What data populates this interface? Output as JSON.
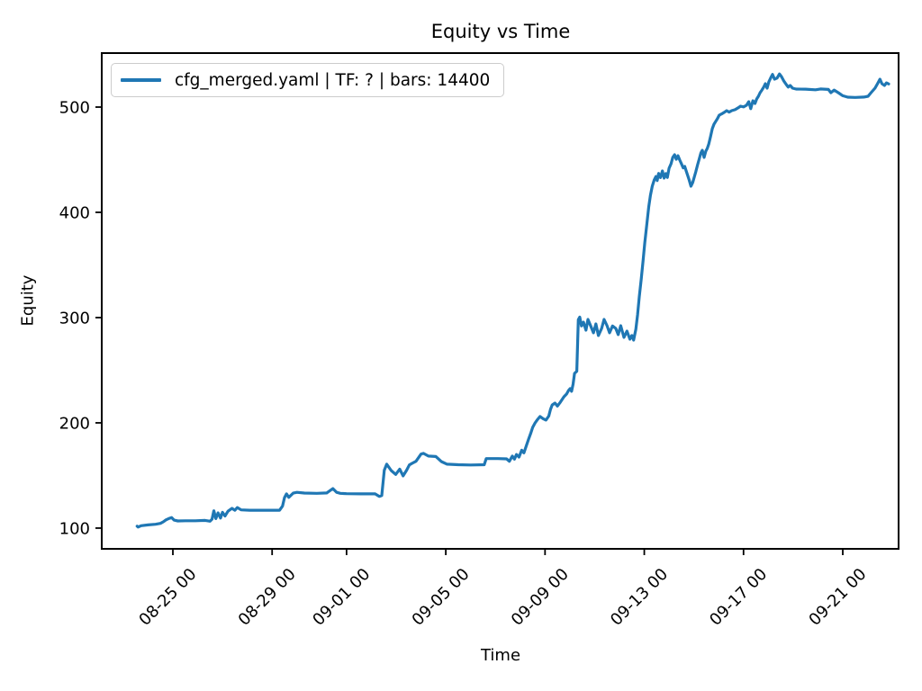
{
  "figure": {
    "background": "#ffffff",
    "text_color": "#000000",
    "spine_color": "#000000",
    "legend_border_color": "#cccccc"
  },
  "chart_data": {
    "type": "line",
    "title": "Equity vs Time",
    "xlabel": "Time",
    "ylabel": "Equity",
    "grid": false,
    "legend_position": "upper left",
    "x_units": "days (0 = 08-23 00:00), estimated from axis ticks",
    "xlim": [
      -0.867,
      31.25
    ],
    "ylim": [
      80.3,
      551.3
    ],
    "yticks": [
      100,
      200,
      300,
      400,
      500
    ],
    "xticks": [
      {
        "t": 2,
        "label": "08-25 00"
      },
      {
        "t": 6,
        "label": "08-29 00"
      },
      {
        "t": 9,
        "label": "09-01 00"
      },
      {
        "t": 13,
        "label": "09-05 00"
      },
      {
        "t": 17,
        "label": "09-09 00"
      },
      {
        "t": 21,
        "label": "09-13 00"
      },
      {
        "t": 25,
        "label": "09-17 00"
      },
      {
        "t": 29,
        "label": "09-21 00"
      }
    ],
    "series": [
      {
        "name": "cfg_merged.yaml | TF: ? | bars: 14400",
        "color": "#1f77b4",
        "line_width": 3.2,
        "points": [
          [
            0.56,
            101.8
          ],
          [
            0.6,
            101
          ],
          [
            0.72,
            102.3
          ],
          [
            1.0,
            103
          ],
          [
            1.3,
            103.6
          ],
          [
            1.5,
            104.5
          ],
          [
            1.62,
            106
          ],
          [
            1.72,
            107.8
          ],
          [
            1.83,
            109
          ],
          [
            1.95,
            110
          ],
          [
            2.05,
            107.6
          ],
          [
            2.2,
            106.8
          ],
          [
            2.5,
            107
          ],
          [
            2.9,
            107
          ],
          [
            3.3,
            107.3
          ],
          [
            3.5,
            106.5
          ],
          [
            3.58,
            108.5
          ],
          [
            3.65,
            116.5
          ],
          [
            3.73,
            109
          ],
          [
            3.82,
            114.5
          ],
          [
            3.92,
            109.5
          ],
          [
            4.0,
            115
          ],
          [
            4.1,
            111.5
          ],
          [
            4.22,
            116
          ],
          [
            4.38,
            118.8
          ],
          [
            4.5,
            117
          ],
          [
            4.6,
            119.5
          ],
          [
            4.75,
            117.3
          ],
          [
            5.1,
            117
          ],
          [
            5.7,
            117
          ],
          [
            6.3,
            117
          ],
          [
            6.42,
            121
          ],
          [
            6.5,
            129
          ],
          [
            6.58,
            132.5
          ],
          [
            6.67,
            129.2
          ],
          [
            6.85,
            133.2
          ],
          [
            7.0,
            134
          ],
          [
            7.3,
            133.3
          ],
          [
            7.8,
            133
          ],
          [
            8.2,
            133.4
          ],
          [
            8.45,
            137.6
          ],
          [
            8.6,
            134
          ],
          [
            8.75,
            133
          ],
          [
            9.0,
            132.7
          ],
          [
            9.6,
            132.5
          ],
          [
            10.15,
            132.5
          ],
          [
            10.32,
            130.1
          ],
          [
            10.42,
            131
          ],
          [
            10.52,
            155
          ],
          [
            10.62,
            160.7
          ],
          [
            10.8,
            154.7
          ],
          [
            10.98,
            151
          ],
          [
            11.14,
            156
          ],
          [
            11.28,
            149.6
          ],
          [
            11.42,
            155
          ],
          [
            11.53,
            160
          ],
          [
            11.64,
            161.5
          ],
          [
            11.8,
            163.5
          ],
          [
            12.0,
            170.3
          ],
          [
            12.1,
            171
          ],
          [
            12.3,
            168.4
          ],
          [
            12.6,
            168
          ],
          [
            12.82,
            163.2
          ],
          [
            13.05,
            160.7
          ],
          [
            13.5,
            160.2
          ],
          [
            14.0,
            160
          ],
          [
            14.55,
            160.2
          ],
          [
            14.63,
            166
          ],
          [
            15.1,
            166
          ],
          [
            15.45,
            165.8
          ],
          [
            15.56,
            163.5
          ],
          [
            15.68,
            168.4
          ],
          [
            15.77,
            165.5
          ],
          [
            15.85,
            170
          ],
          [
            15.95,
            167.5
          ],
          [
            16.06,
            174
          ],
          [
            16.15,
            171.5
          ],
          [
            16.25,
            178.6
          ],
          [
            16.34,
            184.6
          ],
          [
            16.42,
            190
          ],
          [
            16.5,
            195.7
          ],
          [
            16.6,
            200
          ],
          [
            16.68,
            202.6
          ],
          [
            16.8,
            206
          ],
          [
            16.92,
            204
          ],
          [
            17.04,
            202.6
          ],
          [
            17.15,
            206.5
          ],
          [
            17.22,
            212.8
          ],
          [
            17.29,
            217
          ],
          [
            17.4,
            218.8
          ],
          [
            17.5,
            216
          ],
          [
            17.62,
            219.7
          ],
          [
            17.76,
            224.8
          ],
          [
            17.87,
            227.4
          ],
          [
            17.95,
            230.8
          ],
          [
            18.01,
            232.5
          ],
          [
            18.07,
            230
          ],
          [
            18.13,
            236.8
          ],
          [
            18.19,
            247
          ],
          [
            18.28,
            249
          ],
          [
            18.34,
            298
          ],
          [
            18.4,
            300.5
          ],
          [
            18.47,
            292
          ],
          [
            18.55,
            295.7
          ],
          [
            18.65,
            288
          ],
          [
            18.73,
            298.3
          ],
          [
            18.85,
            291.5
          ],
          [
            18.95,
            285.5
          ],
          [
            19.05,
            294
          ],
          [
            19.15,
            283
          ],
          [
            19.28,
            289.7
          ],
          [
            19.38,
            298.3
          ],
          [
            19.5,
            292.3
          ],
          [
            19.6,
            285.5
          ],
          [
            19.72,
            292
          ],
          [
            19.85,
            289.7
          ],
          [
            19.95,
            283.8
          ],
          [
            20.05,
            292.3
          ],
          [
            20.18,
            281.2
          ],
          [
            20.3,
            287.2
          ],
          [
            20.42,
            279.5
          ],
          [
            20.5,
            283
          ],
          [
            20.57,
            278.6
          ],
          [
            20.66,
            289
          ],
          [
            20.73,
            302.6
          ],
          [
            20.8,
            319.7
          ],
          [
            20.88,
            336.8
          ],
          [
            20.95,
            353.8
          ],
          [
            21.02,
            371
          ],
          [
            21.1,
            388
          ],
          [
            21.18,
            405.1
          ],
          [
            21.25,
            416.2
          ],
          [
            21.32,
            424.8
          ],
          [
            21.4,
            430.8
          ],
          [
            21.47,
            434
          ],
          [
            21.52,
            430.2
          ],
          [
            21.58,
            437
          ],
          [
            21.65,
            433
          ],
          [
            21.73,
            439.3
          ],
          [
            21.8,
            432.5
          ],
          [
            21.87,
            436.8
          ],
          [
            21.93,
            433.2
          ],
          [
            22.0,
            441.9
          ],
          [
            22.08,
            446.2
          ],
          [
            22.15,
            452.2
          ],
          [
            22.22,
            454.7
          ],
          [
            22.29,
            450.4
          ],
          [
            22.36,
            453.8
          ],
          [
            22.43,
            449.6
          ],
          [
            22.5,
            446
          ],
          [
            22.57,
            442.2
          ],
          [
            22.63,
            443.6
          ],
          [
            22.69,
            439.3
          ],
          [
            22.75,
            435
          ],
          [
            22.81,
            430.8
          ],
          [
            22.88,
            424.8
          ],
          [
            22.95,
            428.2
          ],
          [
            23.01,
            433
          ],
          [
            23.08,
            439
          ],
          [
            23.15,
            445.3
          ],
          [
            23.21,
            450.4
          ],
          [
            23.28,
            456.4
          ],
          [
            23.34,
            459
          ],
          [
            23.41,
            452.1
          ],
          [
            23.48,
            458.1
          ],
          [
            23.54,
            460.7
          ],
          [
            23.6,
            465
          ],
          [
            23.67,
            471.8
          ],
          [
            23.74,
            479.5
          ],
          [
            23.81,
            483.8
          ],
          [
            23.88,
            486.4
          ],
          [
            23.95,
            489
          ],
          [
            24.02,
            492.3
          ],
          [
            24.12,
            493.5
          ],
          [
            24.22,
            495
          ],
          [
            24.32,
            496.6
          ],
          [
            24.42,
            495.2
          ],
          [
            24.52,
            496.6
          ],
          [
            24.66,
            497.5
          ],
          [
            24.78,
            499.2
          ],
          [
            24.88,
            500.9
          ],
          [
            25.0,
            500.2
          ],
          [
            25.12,
            501.7
          ],
          [
            25.21,
            505.1
          ],
          [
            25.29,
            498.5
          ],
          [
            25.38,
            506
          ],
          [
            25.46,
            503.4
          ],
          [
            25.53,
            507.7
          ],
          [
            25.6,
            510.3
          ],
          [
            25.67,
            513.7
          ],
          [
            25.74,
            516.2
          ],
          [
            25.81,
            518.8
          ],
          [
            25.88,
            522.2
          ],
          [
            25.95,
            518
          ],
          [
            26.02,
            524
          ],
          [
            26.1,
            528
          ],
          [
            26.17,
            531
          ],
          [
            26.25,
            526.5
          ],
          [
            26.35,
            527.5
          ],
          [
            26.45,
            531.5
          ],
          [
            26.53,
            529
          ],
          [
            26.62,
            525
          ],
          [
            26.72,
            521.5
          ],
          [
            26.8,
            519
          ],
          [
            26.88,
            520.5
          ],
          [
            26.98,
            518
          ],
          [
            27.12,
            517.1
          ],
          [
            27.5,
            517
          ],
          [
            27.9,
            516.4
          ],
          [
            28.1,
            517.2
          ],
          [
            28.42,
            516.8
          ],
          [
            28.52,
            513.7
          ],
          [
            28.65,
            516.2
          ],
          [
            28.82,
            513.7
          ],
          [
            29.0,
            510.8
          ],
          [
            29.2,
            509.4
          ],
          [
            29.5,
            509.2
          ],
          [
            29.85,
            509.5
          ],
          [
            30.02,
            510.3
          ],
          [
            30.14,
            513.7
          ],
          [
            30.3,
            518
          ],
          [
            30.42,
            523
          ],
          [
            30.5,
            526.5
          ],
          [
            30.58,
            522.2
          ],
          [
            30.68,
            520.5
          ],
          [
            30.76,
            523
          ],
          [
            30.85,
            522
          ]
        ]
      }
    ]
  }
}
